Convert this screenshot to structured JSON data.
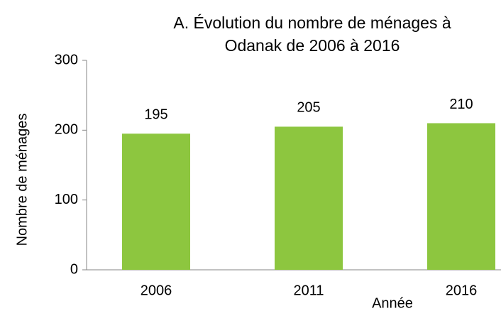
{
  "chart_data": {
    "type": "bar",
    "title": [
      "A. Évolution du nombre de ménages à",
      "Odanak de 2006 à 2016"
    ],
    "x_label": "Année",
    "y_label": "Nombre de ménages",
    "categories": [
      "2006",
      "2011",
      "2016"
    ],
    "values": [
      195,
      205,
      210
    ],
    "color": "#8dc63f",
    "ylim": [
      0,
      300
    ],
    "yticks": [
      0,
      100,
      200,
      300
    ],
    "grid": false,
    "data_labels": true
  }
}
